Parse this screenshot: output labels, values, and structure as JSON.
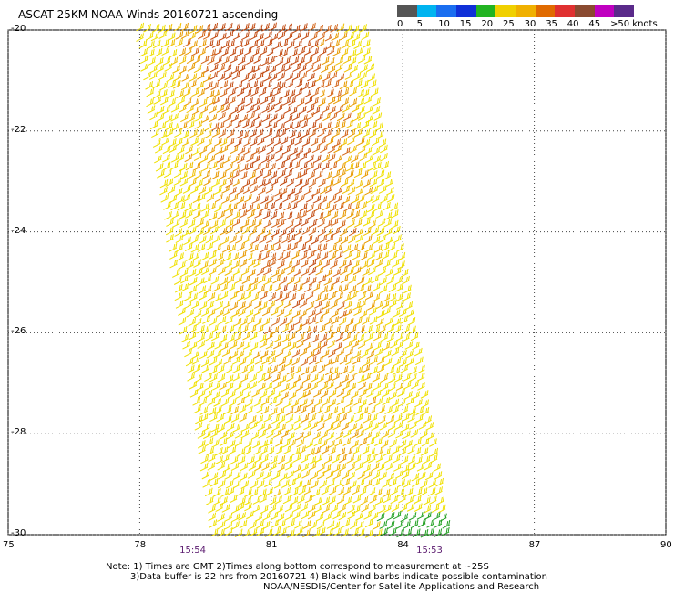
{
  "title": "ASCAT 25KM NOAA Winds 20160721 ascending",
  "legend": {
    "labels": [
      "0",
      "5",
      "10",
      "15",
      "20",
      "25",
      "30",
      "35",
      "40",
      "45",
      ">50 knots"
    ],
    "colors": [
      "#555555",
      "#00b4f0",
      "#1a6ef0",
      "#1030d8",
      "#22b422",
      "#f0d000",
      "#f0b000",
      "#e06a00",
      "#e03030",
      "#8a4a30",
      "#c000c0",
      "#5a2a8a"
    ]
  },
  "map": {
    "lon_range": [
      75,
      90
    ],
    "lat_range": [
      -30,
      -20
    ],
    "lon_ticks": [
      "75",
      "78",
      "81",
      "84",
      "87",
      "90"
    ],
    "lat_ticks": [
      "-20",
      "-22",
      "-24",
      "-26",
      "-28",
      "-30"
    ],
    "grid": "dotted",
    "swath_corners_lonlat": [
      [
        78.0,
        -20.0
      ],
      [
        83.1,
        -20.0
      ],
      [
        85.0,
        -30.0
      ],
      [
        79.7,
        -30.0
      ]
    ],
    "time_labels": [
      {
        "text": "15:54",
        "lon": 79.2
      },
      {
        "text": "15:53",
        "lon": 84.6
      }
    ]
  },
  "notes": [
    "Note: 1) Times are GMT 2)Times along bottom correspond to measurement at ~25S",
    "3)Data buffer is 22 hrs from 20160721 4) Black wind barbs indicate possible contamination",
    "NOAA/NESDIS/Center for Satellite Applications and Research"
  ]
}
